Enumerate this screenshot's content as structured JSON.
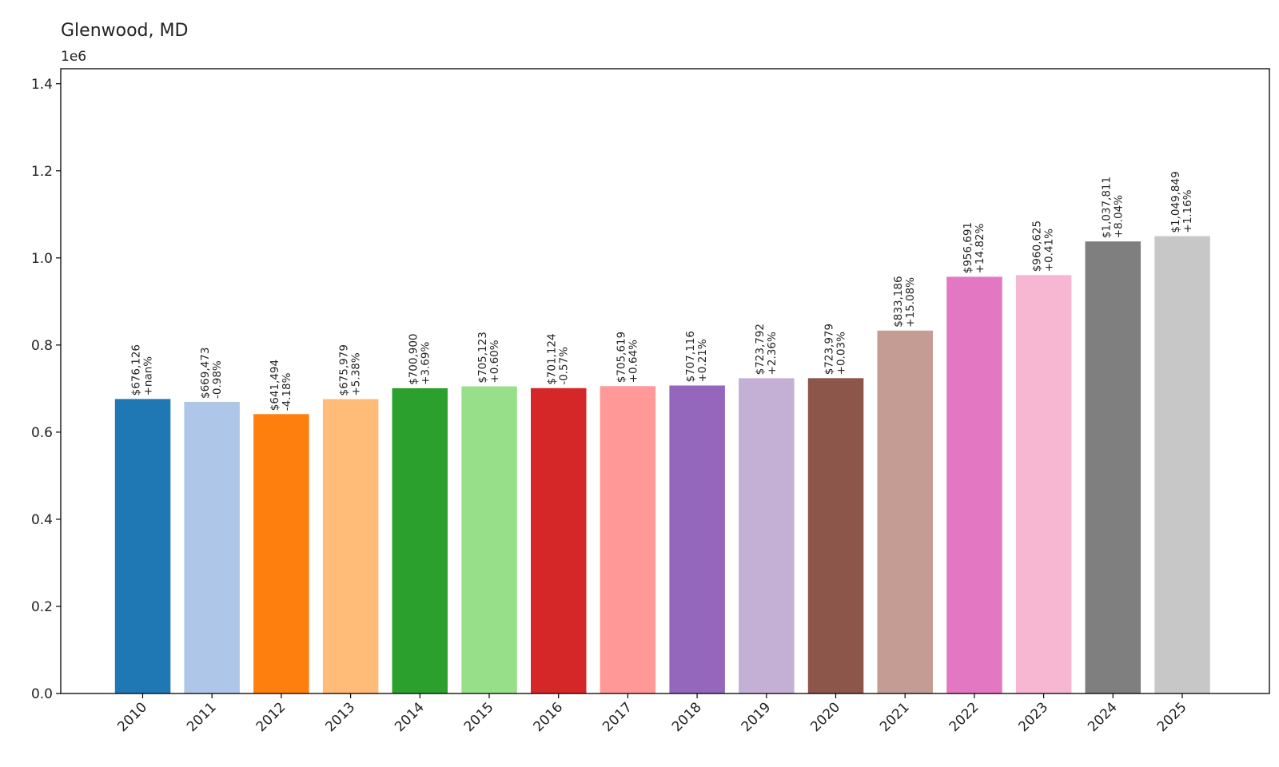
{
  "chart_data": {
    "type": "bar",
    "title": "Glenwood, MD",
    "y_offset_label": "1e6",
    "xlabel": "",
    "ylabel": "",
    "ylim": [
      0,
      1.4
    ],
    "yticks": [
      "0.0",
      "0.2",
      "0.4",
      "0.6",
      "0.8",
      "1.0",
      "1.2",
      "1.4"
    ],
    "grid": false,
    "legend": "none",
    "categories": [
      "2010",
      "2011",
      "2012",
      "2013",
      "2014",
      "2015",
      "2016",
      "2017",
      "2018",
      "2019",
      "2020",
      "2021",
      "2022",
      "2023",
      "2024",
      "2025"
    ],
    "values": [
      676126,
      669473,
      641494,
      675979,
      700900,
      705123,
      701124,
      705619,
      707116,
      723792,
      723979,
      833186,
      956691,
      960625,
      1037811,
      1049849
    ],
    "value_labels": [
      "$676,126",
      "$669,473",
      "$641,494",
      "$675,979",
      "$700,900",
      "$705,123",
      "$701,124",
      "$705,619",
      "$707,116",
      "$723,792",
      "$723,979",
      "$833,186",
      "$956,691",
      "$960,625",
      "$1,037,811",
      "$1,049,849"
    ],
    "change_labels": [
      "+nan%",
      "-0.98%",
      "-4.18%",
      "+5.38%",
      "+3.69%",
      "+0.60%",
      "-0.57%",
      "+0.64%",
      "+0.21%",
      "+2.36%",
      "+0.03%",
      "+15.08%",
      "+14.82%",
      "+0.41%",
      "+8.04%",
      "+1.16%"
    ],
    "colors": [
      "#1f77b4",
      "#aec7e8",
      "#ff7f0e",
      "#ffbb78",
      "#2ca02c",
      "#98df8a",
      "#d62728",
      "#ff9896",
      "#9467bd",
      "#c5b0d5",
      "#8c564b",
      "#c49c94",
      "#e377c2",
      "#f7b6d2",
      "#7f7f7f",
      "#c7c7c7"
    ]
  }
}
